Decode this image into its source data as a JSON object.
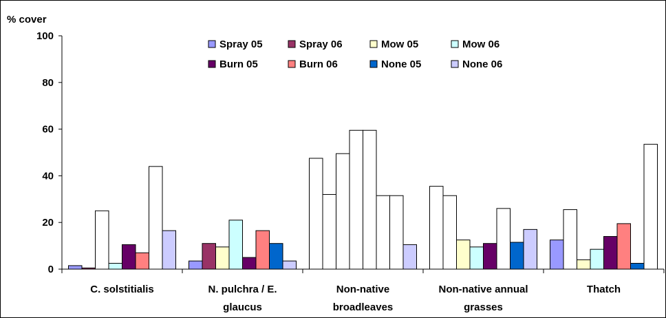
{
  "chart_data": {
    "type": "bar",
    "title": "",
    "ylabel": "% cover",
    "xlabel": "",
    "ylim": [
      0,
      100
    ],
    "yticks": [
      0,
      20,
      40,
      60,
      80,
      100
    ],
    "grid": false,
    "legend_position": "top",
    "categories": [
      [
        "C. solstitialis"
      ],
      [
        "N. pulchra / E.",
        "glaucus"
      ],
      [
        "Non-native",
        "broadleaves"
      ],
      [
        "Non-native annual",
        "grasses"
      ],
      [
        "Thatch"
      ]
    ],
    "series": [
      {
        "name": "Spray 05",
        "color": "#9999ff",
        "values": [
          1.5,
          3.5,
          47.5,
          35.5,
          12.5
        ]
      },
      {
        "name": "Spray 06",
        "color": "#993366",
        "values": [
          0.5,
          11,
          32,
          31.5,
          25.5
        ]
      },
      {
        "name": "Mow 05",
        "color": "#ffffcc",
        "values": [
          25,
          9.5,
          49.5,
          12.5,
          4
        ]
      },
      {
        "name": "Mow 06",
        "color": "#ccffff",
        "values": [
          2.5,
          21,
          59.5,
          9.5,
          8.5
        ]
      },
      {
        "name": "Burn 05",
        "color": "#660066",
        "values": [
          10.5,
          5,
          59.5,
          11,
          14
        ]
      },
      {
        "name": "Burn 06",
        "color": "#ff8080",
        "values": [
          7,
          16.5,
          31.5,
          26,
          19.5
        ]
      },
      {
        "name": "None 05",
        "color": "#0066cc",
        "values": [
          44,
          11,
          31.5,
          11.5,
          2.5
        ]
      },
      {
        "name": "None 06",
        "color": "#ccccff",
        "values": [
          16.5,
          3.5,
          10.5,
          17,
          53.5
        ]
      }
    ],
    "white_filled_bars": [
      [
        0,
        2
      ],
      [
        0,
        6
      ],
      [
        2,
        0
      ],
      [
        2,
        1
      ],
      [
        2,
        2
      ],
      [
        2,
        3
      ],
      [
        2,
        4
      ],
      [
        2,
        5
      ],
      [
        2,
        6
      ],
      [
        3,
        0
      ],
      [
        3,
        1
      ],
      [
        3,
        5
      ],
      [
        4,
        1
      ],
      [
        4,
        7
      ]
    ]
  }
}
